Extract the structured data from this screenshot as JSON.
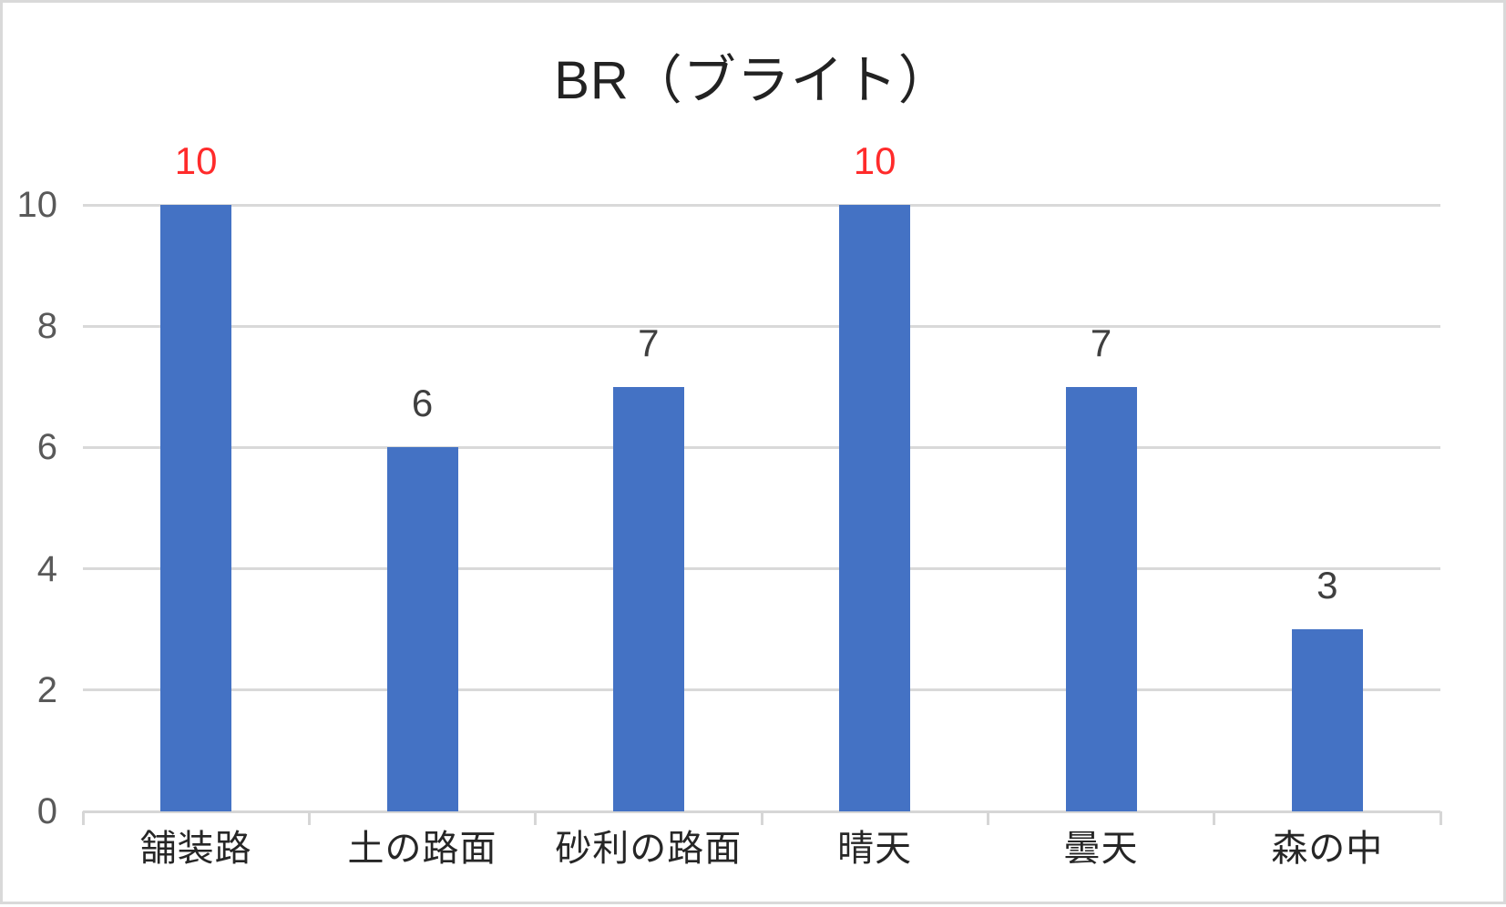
{
  "window": {
    "background_color": "#FFFFFF",
    "border_color": "#D9D9D9"
  },
  "chart_data": {
    "type": "bar",
    "title": "BR（ブライト）",
    "categories": [
      "舗装路",
      "土の路面",
      "砂利の路面",
      "晴天",
      "曇天",
      "森の中"
    ],
    "values": [
      10,
      6,
      7,
      10,
      7,
      3
    ],
    "value_labels": [
      {
        "text": "10",
        "color": "#FF2B2B"
      },
      {
        "text": "6",
        "color": "#3F3F3F"
      },
      {
        "text": "7",
        "color": "#3F3F3F"
      },
      {
        "text": "10",
        "color": "#FF2B2B"
      },
      {
        "text": "7",
        "color": "#3F3F3F"
      },
      {
        "text": "3",
        "color": "#3F3F3F"
      }
    ],
    "xlabel": "",
    "ylabel": "",
    "ylim": [
      0,
      10
    ],
    "yticks": [
      0,
      2,
      4,
      6,
      8,
      10
    ],
    "grid": true,
    "legend_position": "none",
    "bar_color": "#4472C4",
    "gridline_color": "#D9D9D9",
    "axis_line_color": "#D6D6D6",
    "ytick_label_color": "#595959",
    "category_label_color": "#262626",
    "title_color": "#222222"
  }
}
